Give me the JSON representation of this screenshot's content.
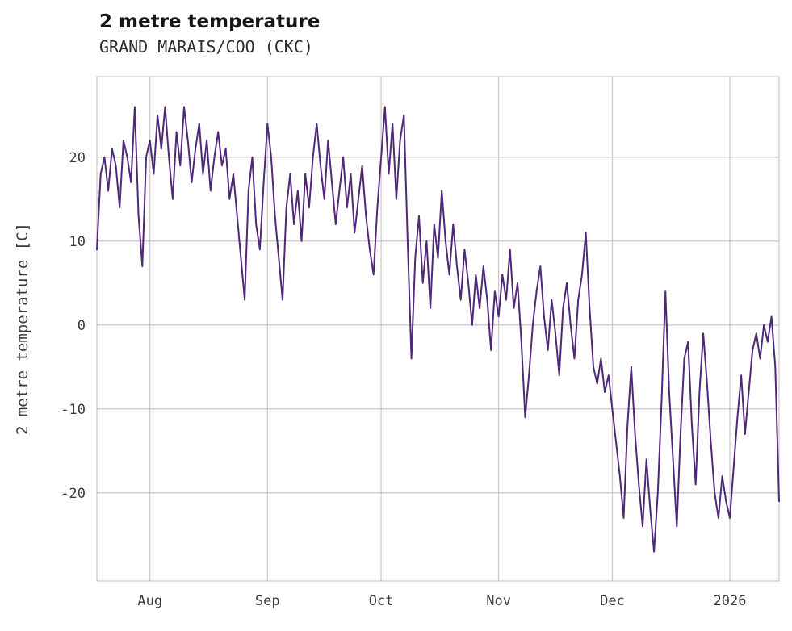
{
  "page": {
    "title": "2 metre temperature",
    "subtitle": "GRAND MARAIS/COO (CKC)"
  },
  "chart_data": {
    "type": "line",
    "title": "2 metre temperature",
    "subtitle": "GRAND MARAIS/COO (CKC)",
    "xlabel": "",
    "ylabel": "2 metre temperature [C]",
    "grid": true,
    "legend": "none",
    "line_color": "#502878",
    "grid_color": "#cbcbcb",
    "ylim": [
      -30.5,
      29.6
    ],
    "y_ticks": [
      -20,
      -10,
      0,
      10,
      20
    ],
    "x_unit": "day index along series",
    "x_ticks": [
      {
        "label": "Aug",
        "day": 14
      },
      {
        "label": "Sep",
        "day": 45
      },
      {
        "label": "Oct",
        "day": 75
      },
      {
        "label": "Nov",
        "day": 106
      },
      {
        "label": "Dec",
        "day": 136
      },
      {
        "label": "2026",
        "day": 167
      }
    ],
    "series": [
      {
        "name": "2 metre temperature [C]",
        "values": [
          9,
          18,
          20,
          16,
          21,
          19,
          14,
          22,
          20,
          17,
          26,
          13,
          7,
          20,
          22,
          18,
          25,
          21,
          26,
          20,
          15,
          23,
          19,
          26,
          22,
          17,
          21,
          24,
          18,
          22,
          16,
          20,
          23,
          19,
          21,
          15,
          18,
          13,
          8,
          3,
          16,
          20,
          12,
          9,
          17,
          24,
          20,
          13,
          8,
          3,
          14,
          18,
          12,
          16,
          10,
          18,
          14,
          20,
          24,
          19,
          15,
          22,
          17,
          12,
          16,
          20,
          14,
          18,
          11,
          15,
          19,
          13,
          9,
          6,
          14,
          20,
          26,
          18,
          24,
          15,
          22,
          25,
          10,
          -4,
          8,
          13,
          5,
          10,
          2,
          12,
          8,
          16,
          10,
          6,
          12,
          7,
          3,
          9,
          5,
          0,
          6,
          2,
          7,
          3,
          -3,
          4,
          1,
          6,
          3,
          9,
          2,
          5,
          -2,
          -11,
          -6,
          0,
          4,
          7,
          1,
          -3,
          3,
          -1,
          -6,
          2,
          5,
          0,
          -4,
          3,
          6,
          11,
          2,
          -5,
          -7,
          -4,
          -8,
          -6,
          -10,
          -14,
          -18,
          -23,
          -12,
          -5,
          -13,
          -19,
          -24,
          -16,
          -22,
          -27,
          -20,
          -9,
          4,
          -8,
          -16,
          -24,
          -13,
          -4,
          -2,
          -12,
          -19,
          -8,
          -1,
          -7,
          -14,
          -20,
          -23,
          -18,
          -21,
          -23,
          -17,
          -11,
          -6,
          -13,
          -8,
          -3,
          -1,
          -4,
          0,
          -2,
          1,
          -5,
          -21
        ]
      }
    ]
  }
}
